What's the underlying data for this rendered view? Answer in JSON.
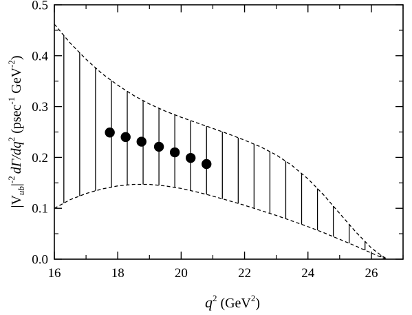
{
  "chart_data": {
    "type": "scatter",
    "xlabel": {
      "main": "q",
      "sup": "2",
      "unit_open": " (GeV",
      "unit_sup": "2",
      "unit_close": ")"
    },
    "ylabel": {
      "abs_open": "|V",
      "abs_sub": "ub",
      "abs_close": "|",
      "exp": "-2",
      "deriv": "dΓ/dq",
      "deriv_sup": "2",
      "unit_open": " (psec",
      "unit_sup1": "-1",
      "unit_mid": " GeV",
      "unit_sup2": "-2",
      "unit_close": ")"
    },
    "xlim": [
      16,
      27
    ],
    "ylim": [
      0,
      0.5
    ],
    "x_ticks": [
      "16",
      "18",
      "20",
      "22",
      "24",
      "26"
    ],
    "y_ticks": [
      "0.0",
      "0.1",
      "0.2",
      "0.3",
      "0.4",
      "0.5"
    ],
    "grid": false,
    "series": [
      {
        "kind": "points",
        "x": [
          17.75,
          18.25,
          18.75,
          19.3,
          19.8,
          20.3,
          20.8
        ],
        "y": [
          0.249,
          0.24,
          0.231,
          0.221,
          0.21,
          0.199,
          0.187
        ]
      },
      {
        "kind": "band",
        "upper": {
          "x": [
            16.0,
            16.5,
            17.0,
            17.5,
            18.0,
            18.5,
            19.0,
            19.5,
            20.0,
            20.5,
            21.0,
            21.5,
            22.0,
            22.5,
            23.0,
            23.5,
            24.0,
            24.5,
            25.0,
            25.5,
            26.0,
            26.3,
            26.5
          ],
          "y": [
            0.462,
            0.425,
            0.393,
            0.365,
            0.342,
            0.322,
            0.305,
            0.291,
            0.279,
            0.268,
            0.257,
            0.246,
            0.234,
            0.221,
            0.205,
            0.184,
            0.158,
            0.126,
            0.09,
            0.054,
            0.022,
            0.008,
            0.0
          ]
        },
        "lower": {
          "x": [
            16.0,
            16.5,
            17.0,
            17.5,
            18.0,
            18.5,
            19.0,
            19.5,
            20.0,
            20.5,
            21.0,
            21.5,
            22.0,
            22.5,
            23.0,
            23.5,
            24.0,
            24.5,
            25.0,
            25.5,
            26.0,
            26.3,
            26.5
          ],
          "y": [
            0.1,
            0.117,
            0.129,
            0.138,
            0.144,
            0.147,
            0.147,
            0.144,
            0.139,
            0.132,
            0.124,
            0.115,
            0.106,
            0.096,
            0.086,
            0.075,
            0.064,
            0.052,
            0.039,
            0.026,
            0.012,
            0.004,
            0.0
          ]
        },
        "hatch_x": [
          16.3,
          16.8,
          17.3,
          17.8,
          18.3,
          18.8,
          19.3,
          19.8,
          20.3,
          20.8,
          21.3,
          21.8,
          22.3,
          22.8,
          23.3,
          23.8,
          24.3,
          24.8,
          25.3,
          25.8,
          26.3
        ]
      }
    ]
  }
}
